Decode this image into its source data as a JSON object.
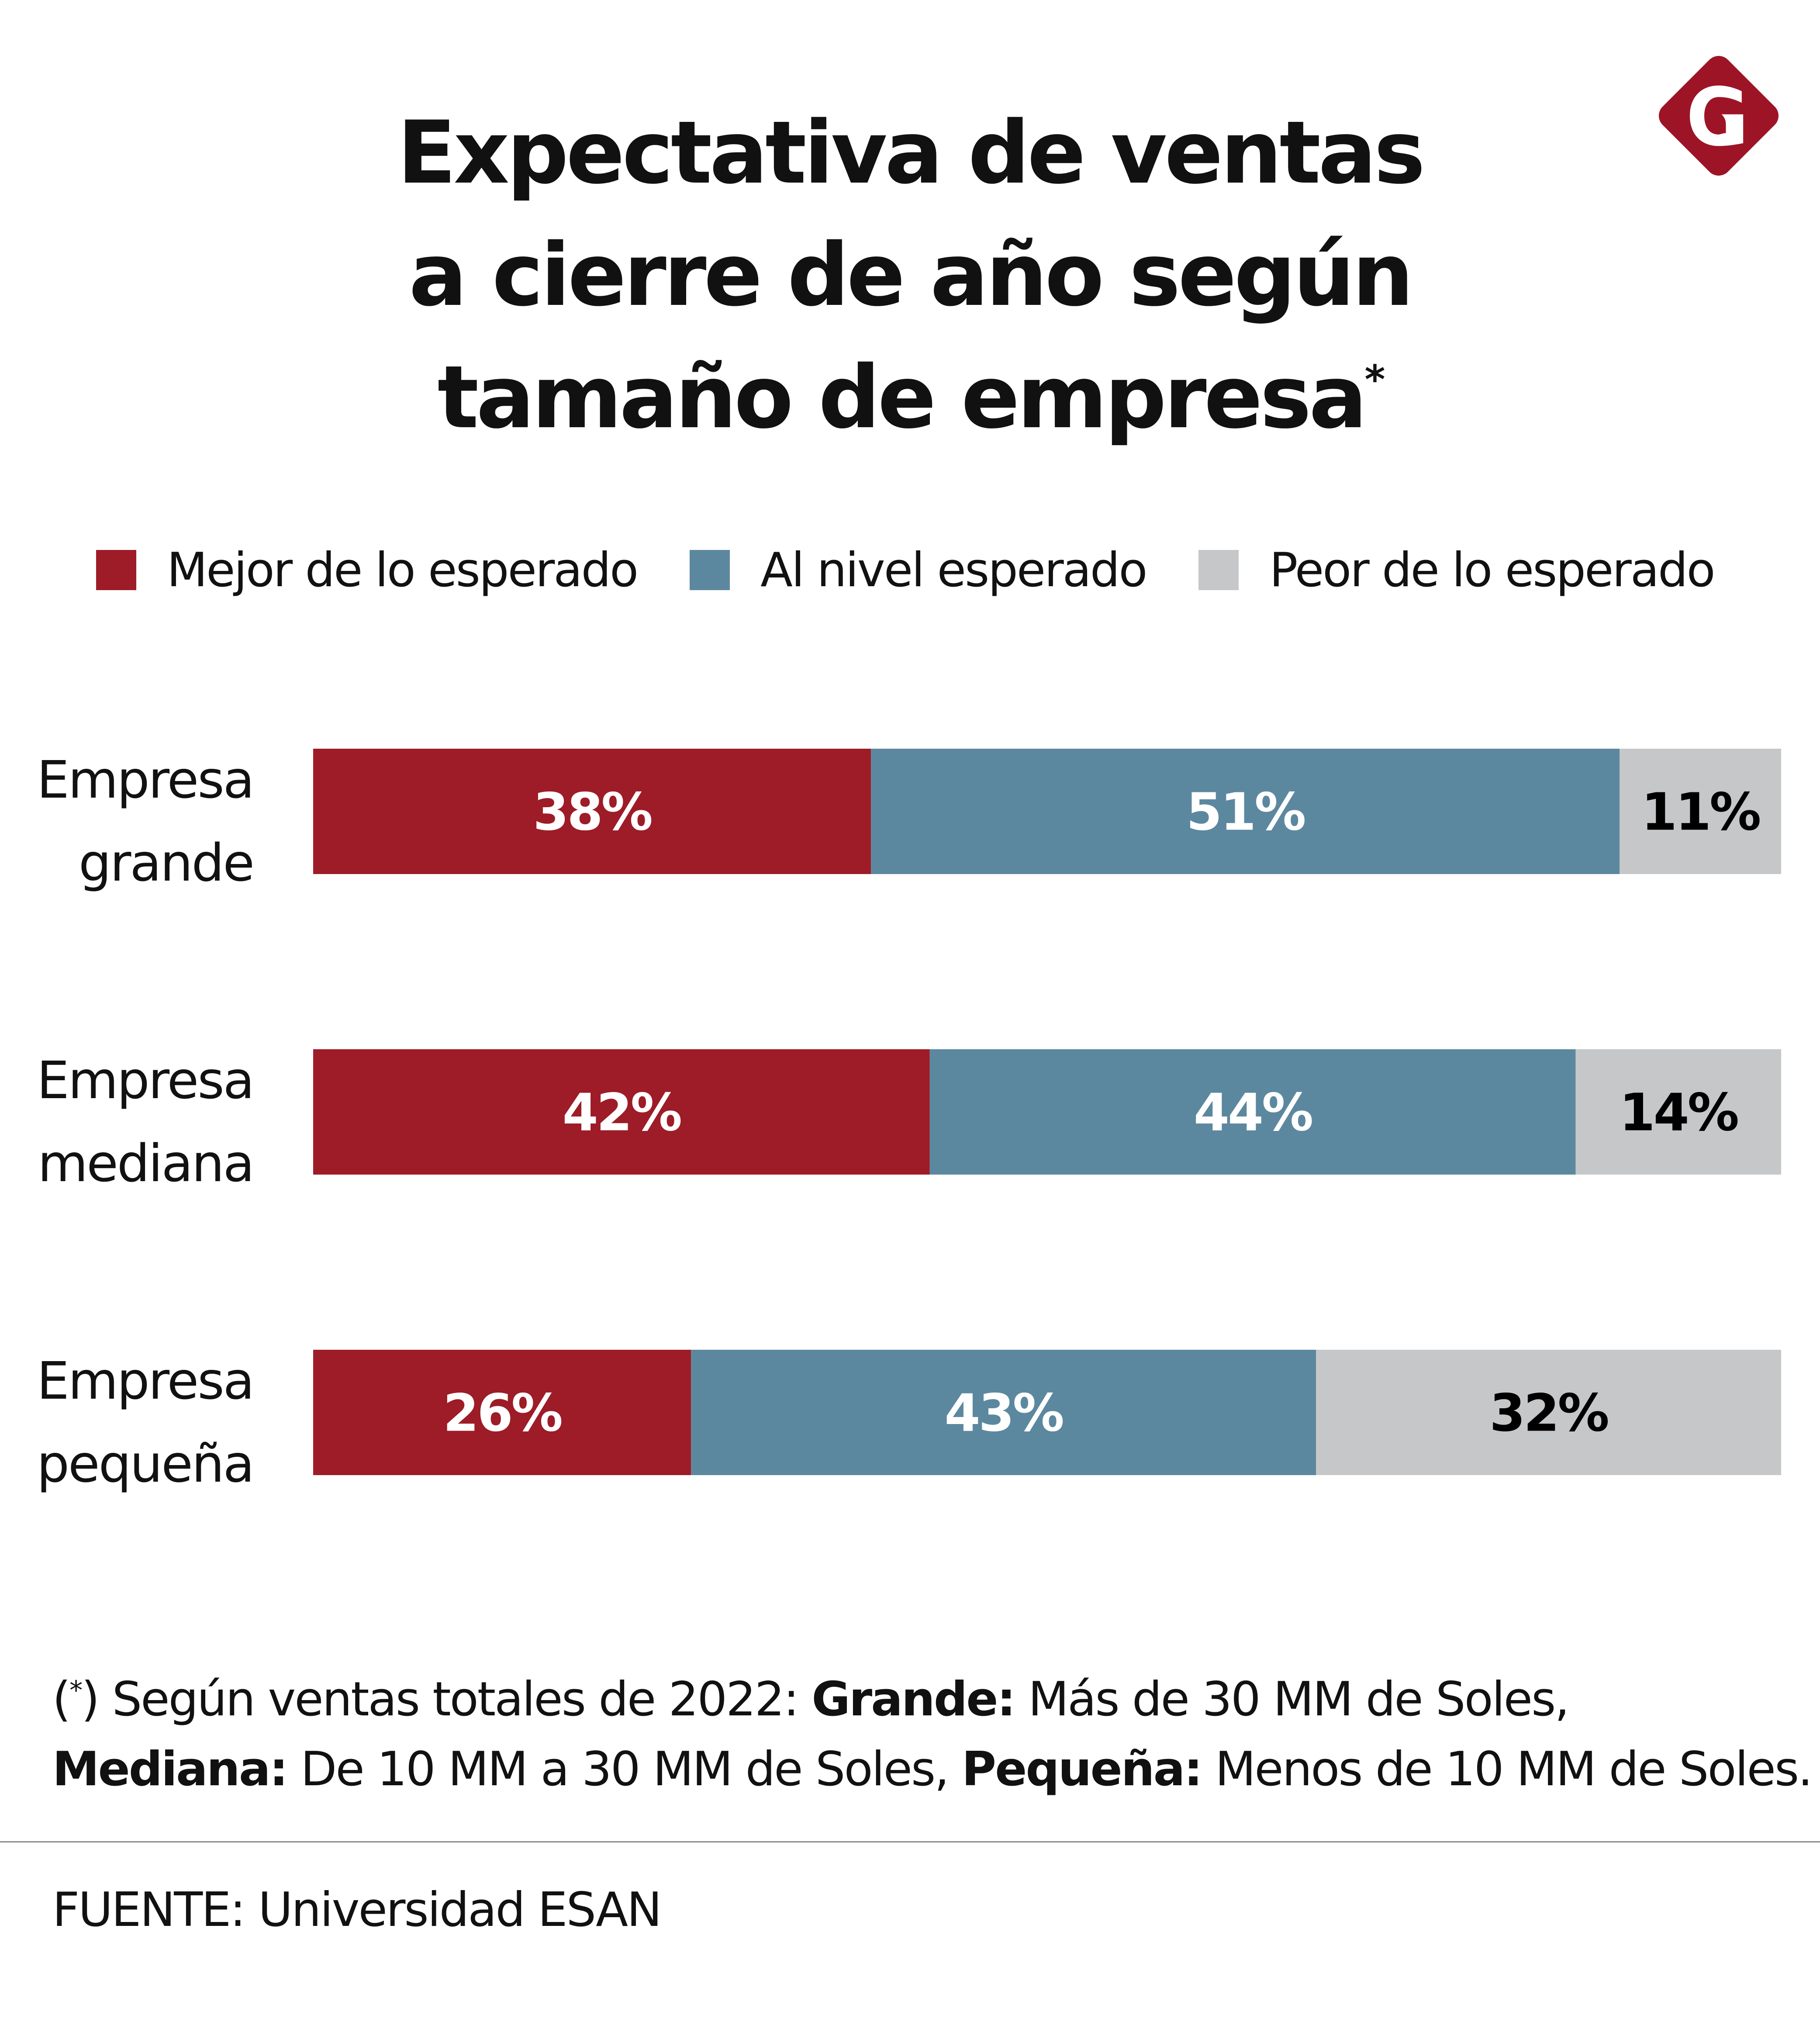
{
  "title": {
    "lines": [
      "Expectativa de ventas",
      "a cierre de año según",
      "tamaño de empresa"
    ],
    "footnote_mark": "*"
  },
  "logo": {
    "icon": "g-diamond-logo-icon",
    "letter": "G",
    "color": "#9e1427"
  },
  "chart_data": {
    "type": "bar",
    "orientation": "horizontal",
    "stacked": true,
    "title": "Expectativa de ventas a cierre de año según tamaño de empresa*",
    "xlabel": "",
    "ylabel": "",
    "xlim": [
      0,
      100
    ],
    "grid": false,
    "legend_position": "top",
    "categories": [
      [
        "Empresa",
        "grande"
      ],
      [
        "Empresa",
        "mediana"
      ],
      [
        "Empresa",
        "pequeña"
      ]
    ],
    "series": [
      {
        "name": "Mejor de lo esperado",
        "color": "#9d1c27",
        "label_color": "#ffffff",
        "values": [
          38,
          42,
          26
        ],
        "labels": [
          "38%",
          "42%",
          "26%"
        ]
      },
      {
        "name": "Al nivel esperado",
        "color": "#5c889f",
        "label_color": "#ffffff",
        "values": [
          51,
          44,
          43
        ],
        "labels": [
          "51%",
          "44%",
          "43%"
        ]
      },
      {
        "name": "Peor de lo esperado",
        "color": "#c6c7c9",
        "label_color": "#000000",
        "values": [
          11,
          14,
          32
        ],
        "labels": [
          "11%",
          "14%",
          "32%"
        ]
      }
    ]
  },
  "legend": [
    {
      "label": "Mejor de lo esperado",
      "color": "#9d1c27"
    },
    {
      "label": "Al nivel esperado",
      "color": "#5c889f"
    },
    {
      "label": "Peor de lo esperado",
      "color": "#c6c7c9"
    }
  ],
  "note": {
    "mark": "*",
    "line1_prefix": ") Según ventas totales de 2022: ",
    "grande_label": "Grande:",
    "grande_text": " Más de 30 MM de Soles,",
    "mediana_label": "Mediana:",
    "mediana_text": " De 10 MM a 30 MM de Soles, ",
    "pequena_label": "Pequeña:",
    "pequena_text": " Menos de 10 MM de Soles."
  },
  "source": "FUENTE: Universidad ESAN"
}
